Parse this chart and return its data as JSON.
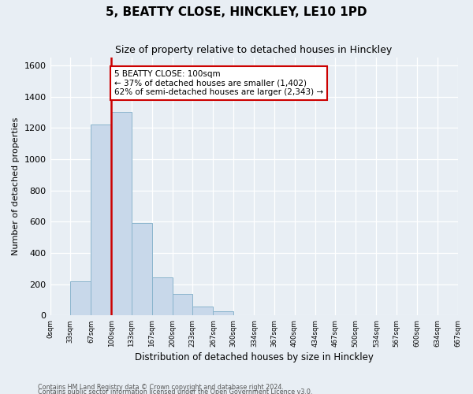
{
  "title": "5, BEATTY CLOSE, HINCKLEY, LE10 1PD",
  "subtitle": "Size of property relative to detached houses in Hinckley",
  "xlabel": "Distribution of detached houses by size in Hinckley",
  "ylabel": "Number of detached properties",
  "bar_edges": [
    0,
    33,
    67,
    100,
    133,
    167,
    200,
    233,
    267,
    300,
    334,
    367,
    400,
    434,
    467,
    500,
    534,
    567,
    600,
    634,
    667
  ],
  "bar_heights": [
    0,
    220,
    1220,
    1300,
    590,
    245,
    140,
    55,
    25,
    0,
    0,
    0,
    0,
    0,
    0,
    0,
    0,
    0,
    0,
    0
  ],
  "bar_color": "#c8d8ea",
  "bar_edge_color": "#8ab4cc",
  "vline_x": 100,
  "vline_color": "#cc0000",
  "ylim": [
    0,
    1650
  ],
  "xlim": [
    0,
    667
  ],
  "annotation_text": "5 BEATTY CLOSE: 100sqm\n← 37% of detached houses are smaller (1,402)\n62% of semi-detached houses are larger (2,343) →",
  "annotation_box_color": "#ffffff",
  "annotation_box_edge": "#cc0000",
  "footnote1": "Contains HM Land Registry data © Crown copyright and database right 2024.",
  "footnote2": "Contains public sector information licensed under the Open Government Licence v3.0.",
  "tick_labels": [
    "0sqm",
    "33sqm",
    "67sqm",
    "100sqm",
    "133sqm",
    "167sqm",
    "200sqm",
    "233sqm",
    "267sqm",
    "300sqm",
    "334sqm",
    "367sqm",
    "400sqm",
    "434sqm",
    "467sqm",
    "500sqm",
    "534sqm",
    "567sqm",
    "600sqm",
    "634sqm",
    "667sqm"
  ],
  "background_color": "#e8eef4",
  "grid_color": "#ffffff",
  "yticks": [
    0,
    200,
    400,
    600,
    800,
    1000,
    1200,
    1400,
    1600
  ]
}
